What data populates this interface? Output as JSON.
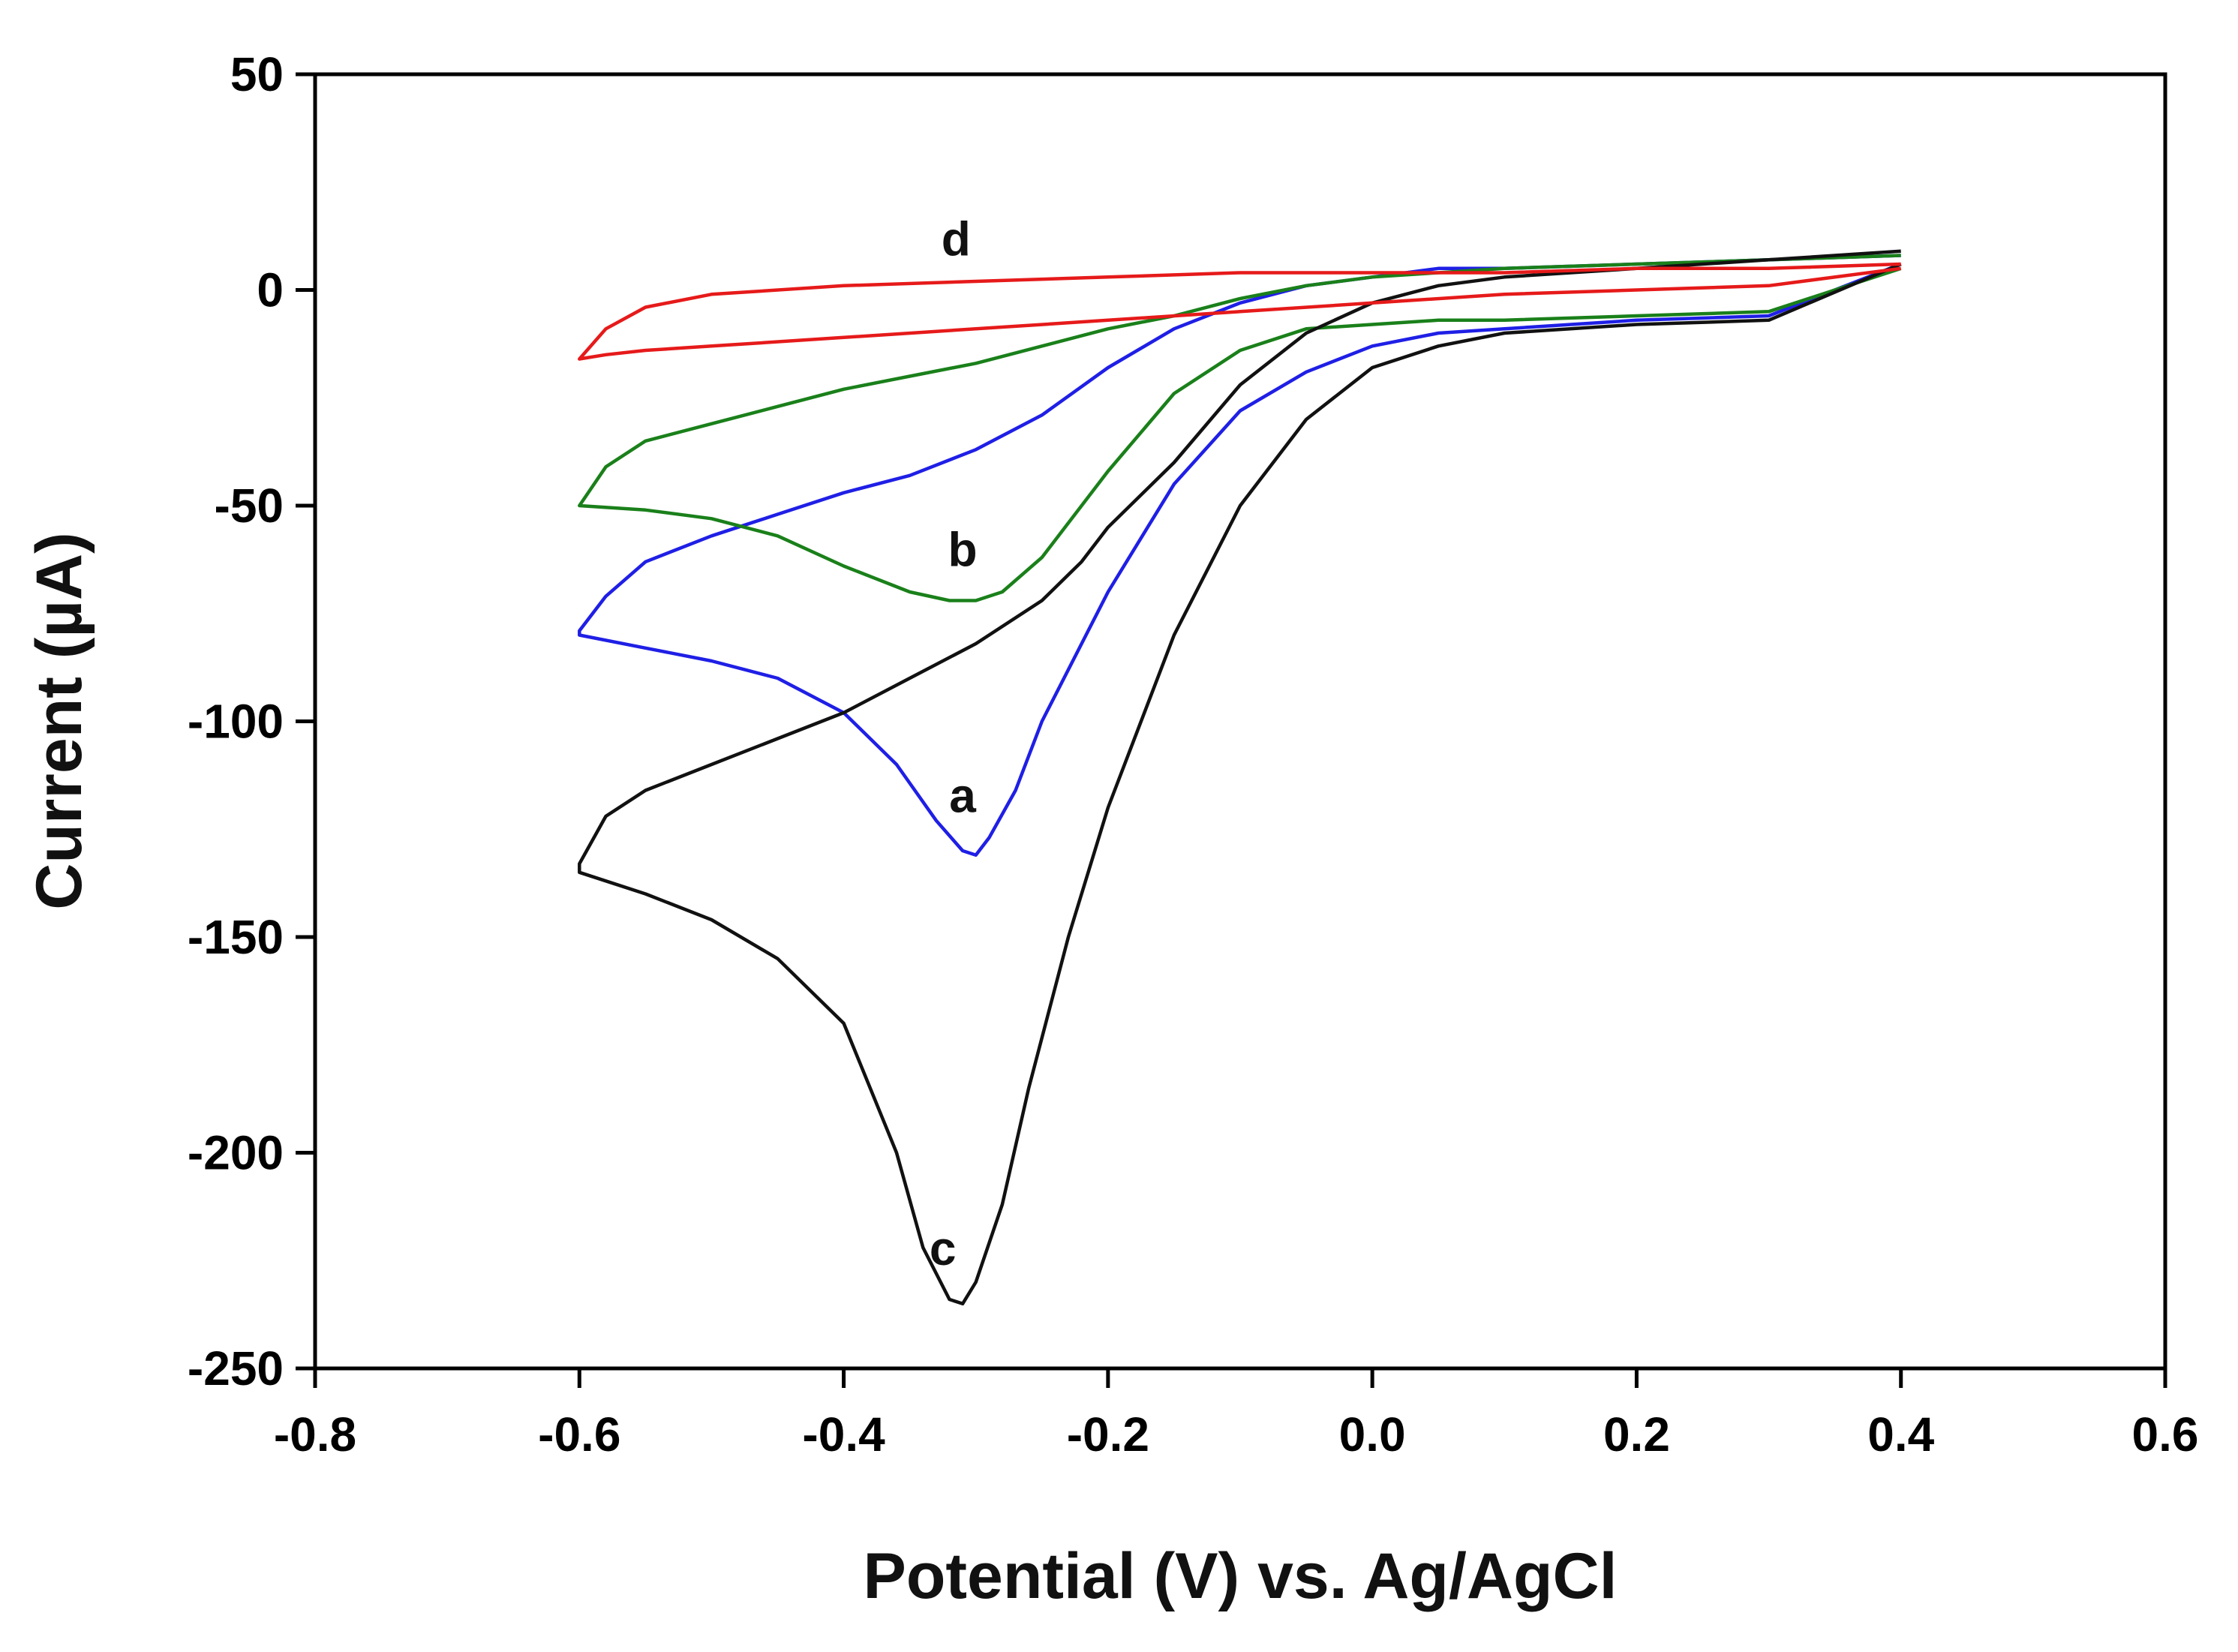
{
  "chart_data": {
    "type": "line",
    "title": "",
    "xlabel": "Potential (V) vs. Ag/AgCl",
    "ylabel": "Current (µA)",
    "xlim": [
      -0.8,
      0.6
    ],
    "ylim": [
      -250,
      50
    ],
    "x_ticks": [
      "-0.8",
      "-0.6",
      "-0.4",
      "-0.2",
      "0.0",
      "0.2",
      "0.4",
      "0.6"
    ],
    "x_tick_values": [
      -0.8,
      -0.6,
      -0.4,
      -0.2,
      0.0,
      0.2,
      0.4,
      0.6
    ],
    "y_ticks": [
      "50",
      "0",
      "-50",
      "-100",
      "-150",
      "-200",
      "-250"
    ],
    "y_tick_values": [
      50,
      0,
      -50,
      -100,
      -150,
      -200,
      -250
    ],
    "grid": false,
    "series": [
      {
        "label": "a",
        "color": "#1f1fe6",
        "label_at": [
          -0.31,
          -121
        ],
        "x": [
          0.4,
          0.3,
          0.2,
          0.1,
          0.05,
          0.0,
          -0.05,
          -0.1,
          -0.15,
          -0.2,
          -0.25,
          -0.27,
          -0.29,
          -0.3,
          -0.31,
          -0.33,
          -0.36,
          -0.4,
          -0.45,
          -0.5,
          -0.55,
          -0.6,
          -0.6,
          -0.58,
          -0.55,
          -0.5,
          -0.45,
          -0.4,
          -0.35,
          -0.3,
          -0.25,
          -0.2,
          -0.15,
          -0.1,
          -0.05,
          0.0,
          0.05,
          0.1,
          0.2,
          0.3,
          0.4
        ],
        "y": [
          6,
          -6,
          -7,
          -9,
          -10,
          -13,
          -19,
          -28,
          -45,
          -70,
          -100,
          -116,
          -127,
          -131,
          -130,
          -123,
          -110,
          -98,
          -90,
          -86,
          -83,
          -80,
          -79,
          -71,
          -63,
          -57,
          -52,
          -47,
          -43,
          -37,
          -29,
          -18,
          -9,
          -3,
          1,
          3,
          5,
          5,
          6,
          7,
          8
        ]
      },
      {
        "label": "b",
        "color": "#1a801a",
        "label_at": [
          -0.31,
          -64
        ],
        "x": [
          0.4,
          0.3,
          0.2,
          0.1,
          0.05,
          0.0,
          -0.05,
          -0.1,
          -0.15,
          -0.2,
          -0.25,
          -0.28,
          -0.3,
          -0.32,
          -0.35,
          -0.4,
          -0.45,
          -0.5,
          -0.55,
          -0.6,
          -0.6,
          -0.58,
          -0.55,
          -0.5,
          -0.45,
          -0.4,
          -0.35,
          -0.3,
          -0.25,
          -0.2,
          -0.15,
          -0.1,
          -0.05,
          0.0,
          0.05,
          0.1,
          0.2,
          0.3,
          0.4
        ],
        "y": [
          5,
          -5,
          -6,
          -7,
          -7,
          -8,
          -9,
          -14,
          -24,
          -42,
          -62,
          -70,
          -72,
          -72,
          -70,
          -64,
          -57,
          -53,
          -51,
          -50,
          -50,
          -41,
          -35,
          -31,
          -27,
          -23,
          -20,
          -17,
          -13,
          -9,
          -6,
          -2,
          1,
          3,
          4,
          5,
          6,
          7,
          8
        ]
      },
      {
        "label": "c",
        "color": "#111111",
        "label_at": [
          -0.325,
          -226
        ],
        "x": [
          0.4,
          0.3,
          0.2,
          0.1,
          0.05,
          0.0,
          -0.05,
          -0.1,
          -0.15,
          -0.2,
          -0.23,
          -0.26,
          -0.28,
          -0.3,
          -0.31,
          -0.32,
          -0.34,
          -0.36,
          -0.4,
          -0.45,
          -0.5,
          -0.55,
          -0.6,
          -0.6,
          -0.58,
          -0.55,
          -0.5,
          -0.45,
          -0.4,
          -0.35,
          -0.3,
          -0.25,
          -0.22,
          -0.2,
          -0.15,
          -0.1,
          -0.05,
          0.0,
          0.05,
          0.1,
          0.2,
          0.3,
          0.4
        ],
        "y": [
          6,
          -7,
          -8,
          -10,
          -13,
          -18,
          -30,
          -50,
          -80,
          -120,
          -150,
          -185,
          -212,
          -230,
          -235,
          -234,
          -222,
          -200,
          -170,
          -155,
          -146,
          -140,
          -135,
          -133,
          -122,
          -116,
          -110,
          -104,
          -98,
          -90,
          -82,
          -72,
          -63,
          -55,
          -40,
          -22,
          -10,
          -3,
          1,
          3,
          5,
          7,
          9
        ]
      },
      {
        "label": "d",
        "color": "#e61a1a",
        "label_at": [
          -0.315,
          8
        ],
        "x": [
          0.4,
          0.3,
          0.2,
          0.1,
          0.0,
          -0.1,
          -0.2,
          -0.3,
          -0.4,
          -0.5,
          -0.55,
          -0.58,
          -0.6,
          -0.6,
          -0.58,
          -0.55,
          -0.5,
          -0.4,
          -0.3,
          -0.2,
          -0.1,
          0.0,
          0.1,
          0.2,
          0.3,
          0.4
        ],
        "y": [
          5,
          1,
          0,
          -1,
          -3,
          -5,
          -7,
          -9,
          -11,
          -13,
          -14,
          -15,
          -16,
          -16,
          -9,
          -4,
          -1,
          1,
          2,
          3,
          4,
          4,
          4,
          5,
          5,
          6
        ]
      }
    ]
  }
}
